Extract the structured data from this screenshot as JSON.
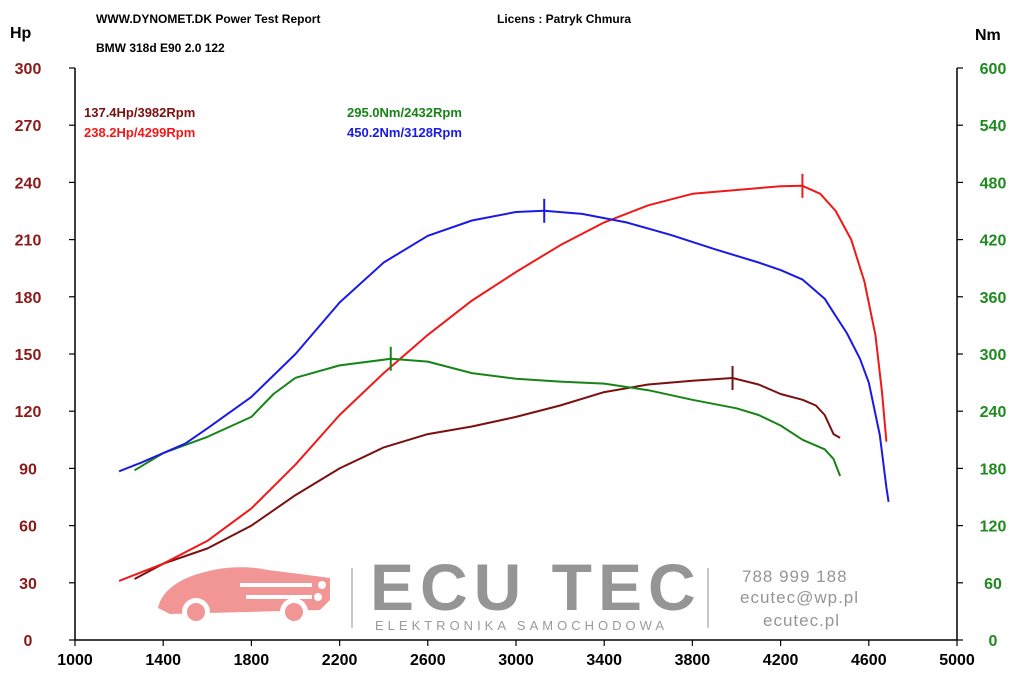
{
  "header": {
    "title": "WWW.DYNOMET.DK  Power Test Report",
    "licens": "Licens :  Patryk Chmura",
    "vehicle": "BMW 318d E90 2.0 122"
  },
  "watermark": {
    "brand": "ECU TEC",
    "subtitle": "ELEKTRONIKA SAMOCHODOWA",
    "phone": "788 999 188",
    "email": "ecutec@wp.pl",
    "website": "ecutec.pl",
    "logo_color": "#f08a8a"
  },
  "chart_data": {
    "type": "line",
    "title": "",
    "xlabel": "",
    "xlim": [
      1000,
      5000
    ],
    "x_ticks": [
      "1000",
      "1400",
      "1800",
      "2200",
      "2600",
      "3000",
      "3400",
      "3800",
      "4200",
      "4600",
      "5000"
    ],
    "left_axis": {
      "label": "Hp",
      "range": [
        0,
        300
      ],
      "ticks": [
        "0",
        "30",
        "60",
        "90",
        "120",
        "150",
        "180",
        "210",
        "240",
        "270",
        "300"
      ],
      "color": "#8b1a1a"
    },
    "right_axis": {
      "label": "Nm",
      "range": [
        0,
        600
      ],
      "ticks": [
        "0",
        "60",
        "120",
        "180",
        "240",
        "300",
        "360",
        "420",
        "480",
        "540",
        "600"
      ],
      "color": "#1f8a1f"
    },
    "grid": false,
    "series": [
      {
        "axis": "left",
        "color": "#7a1010",
        "peak_label": "137.4Hp/3982Rpm",
        "peak": [
          3982,
          137.4
        ],
        "points": [
          [
            1270,
            32
          ],
          [
            1400,
            40
          ],
          [
            1600,
            48
          ],
          [
            1800,
            60
          ],
          [
            1900,
            68
          ],
          [
            2000,
            76
          ],
          [
            2200,
            90
          ],
          [
            2400,
            101
          ],
          [
            2600,
            108
          ],
          [
            2800,
            112
          ],
          [
            3000,
            117
          ],
          [
            3200,
            123
          ],
          [
            3400,
            130
          ],
          [
            3600,
            134
          ],
          [
            3800,
            136
          ],
          [
            3982,
            137.4
          ],
          [
            4100,
            134
          ],
          [
            4200,
            129
          ],
          [
            4300,
            126
          ],
          [
            4360,
            123
          ],
          [
            4400,
            118
          ],
          [
            4440,
            108
          ],
          [
            4470,
            106
          ]
        ]
      },
      {
        "axis": "left",
        "color": "#f01818",
        "peak_label": "238.2Hp/4299Rpm",
        "peak": [
          4299,
          238.2
        ],
        "points": [
          [
            1200,
            31
          ],
          [
            1400,
            40
          ],
          [
            1600,
            52
          ],
          [
            1800,
            69
          ],
          [
            2000,
            92
          ],
          [
            2200,
            118
          ],
          [
            2400,
            140
          ],
          [
            2600,
            160
          ],
          [
            2800,
            178
          ],
          [
            3000,
            193
          ],
          [
            3200,
            207
          ],
          [
            3400,
            219
          ],
          [
            3600,
            228
          ],
          [
            3800,
            234
          ],
          [
            4000,
            236
          ],
          [
            4200,
            238
          ],
          [
            4299,
            238.2
          ],
          [
            4380,
            234
          ],
          [
            4450,
            225
          ],
          [
            4520,
            210
          ],
          [
            4580,
            188
          ],
          [
            4630,
            160
          ],
          [
            4660,
            130
          ],
          [
            4680,
            104
          ]
        ]
      },
      {
        "axis": "right",
        "color": "#178417",
        "peak_label": "295.0Nm/2432Rpm",
        "peak": [
          2432,
          295.0
        ],
        "points": [
          [
            1270,
            178
          ],
          [
            1400,
            196
          ],
          [
            1600,
            213
          ],
          [
            1800,
            234
          ],
          [
            1900,
            258
          ],
          [
            2000,
            275
          ],
          [
            2200,
            288
          ],
          [
            2432,
            295
          ],
          [
            2600,
            292
          ],
          [
            2800,
            280
          ],
          [
            3000,
            274
          ],
          [
            3200,
            271
          ],
          [
            3400,
            269
          ],
          [
            3600,
            262
          ],
          [
            3800,
            252
          ],
          [
            4000,
            243
          ],
          [
            4100,
            236
          ],
          [
            4200,
            225
          ],
          [
            4300,
            210
          ],
          [
            4400,
            200
          ],
          [
            4440,
            190
          ],
          [
            4470,
            172
          ]
        ]
      },
      {
        "axis": "right",
        "color": "#1a1ae6",
        "peak_label": "450.2Nm/3128Rpm",
        "peak": [
          3128,
          450.2
        ],
        "points": [
          [
            1200,
            177
          ],
          [
            1300,
            186
          ],
          [
            1500,
            206
          ],
          [
            1600,
            222
          ],
          [
            1800,
            255
          ],
          [
            2000,
            300
          ],
          [
            2200,
            354
          ],
          [
            2400,
            396
          ],
          [
            2600,
            424
          ],
          [
            2800,
            440
          ],
          [
            3000,
            449
          ],
          [
            3128,
            450.2
          ],
          [
            3300,
            447
          ],
          [
            3500,
            438
          ],
          [
            3700,
            425
          ],
          [
            3900,
            410
          ],
          [
            4100,
            396
          ],
          [
            4200,
            388
          ],
          [
            4300,
            378
          ],
          [
            4400,
            358
          ],
          [
            4450,
            340
          ],
          [
            4500,
            322
          ],
          [
            4560,
            295
          ],
          [
            4600,
            270
          ],
          [
            4650,
            215
          ],
          [
            4680,
            160
          ],
          [
            4690,
            145
          ]
        ]
      }
    ]
  }
}
